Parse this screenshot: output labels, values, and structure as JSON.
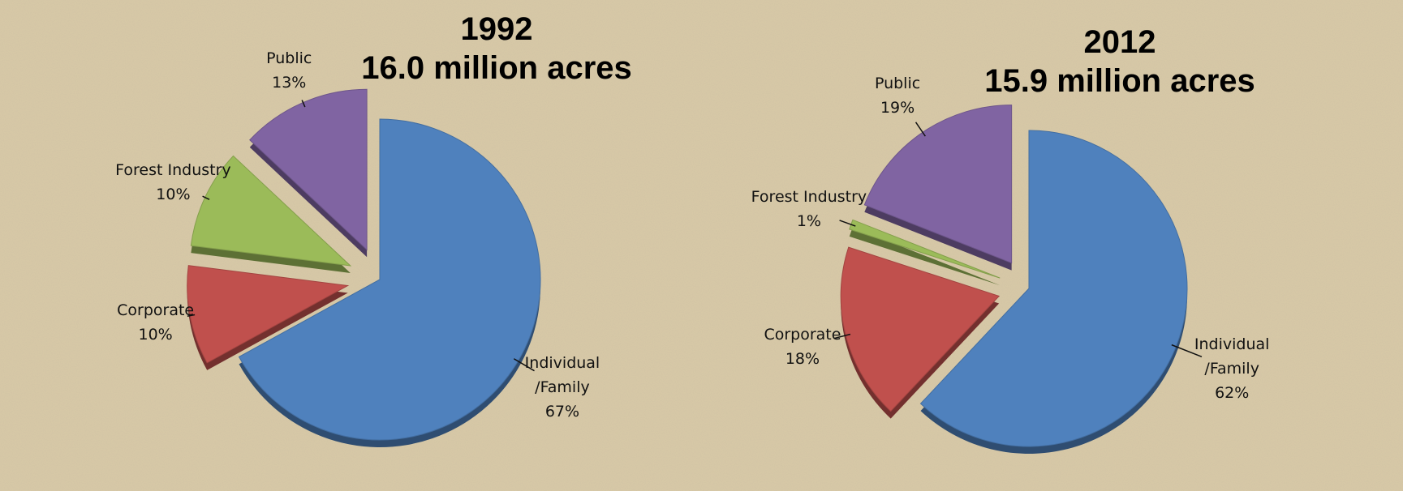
{
  "chart_data": [
    {
      "type": "pie",
      "title": "1992",
      "subtitle": "16.0 million acres",
      "categories": [
        "Individual\n/Family",
        "Corporate",
        "Forest Industry",
        "Public"
      ],
      "values": [
        67,
        10,
        10,
        13
      ],
      "value_labels": [
        "67%",
        "10%",
        "10%",
        "13%"
      ],
      "colors": [
        "#4f81bd",
        "#c0504d",
        "#9bbb59",
        "#8064a2"
      ]
    },
    {
      "type": "pie",
      "title": "2012",
      "subtitle": "15.9 million acres",
      "categories": [
        "Individual\n/Family",
        "Corporate",
        "Forest Industry",
        "Public"
      ],
      "values": [
        62,
        18,
        1,
        19
      ],
      "value_labels": [
        "62%",
        "18%",
        "1%",
        "19%"
      ],
      "colors": [
        "#4f81bd",
        "#c0504d",
        "#9bbb59",
        "#8064a2"
      ]
    }
  ]
}
